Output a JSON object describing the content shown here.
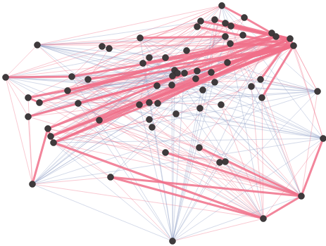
{
  "chart_data": {
    "type": "network",
    "tick_labels": false,
    "grid": false,
    "xlim": [
      0,
      463
    ],
    "ylim": [
      350,
      0
    ],
    "nodes": {
      "color": "#3f3a3c",
      "marker": "circle",
      "x": [
        315,
        347,
        305,
        285,
        280,
        320,
        328,
        345,
        386,
        392,
        412,
        417,
        320,
        327,
        53,
        145,
        155,
        199,
        265,
        212,
        235,
        203,
        323,
        8,
        102,
        125,
        248,
        252,
        245,
        262,
        280,
        300,
        278,
        305,
        223,
        244,
        288,
        370,
        357,
        451,
        96,
        40,
        56,
        111,
        372,
        198,
        212,
        224,
        314,
        284,
        40,
        250,
        212,
        141,
        216,
        68,
        72,
        76,
        459,
        235,
        283,
        312,
        320,
        46,
        157,
        428,
        374,
        245
      ],
      "y": [
        8,
        25,
        28,
        30,
        38,
        33,
        37,
        50,
        47,
        52,
        55,
        65,
        52,
        62,
        64,
        66,
        69,
        54,
        72,
        82,
        82,
        90,
        89,
        110,
        109,
        113,
        100,
        104,
        108,
        104,
        101,
        103,
        112,
        117,
        122,
        121,
        128,
        113,
        123,
        130,
        129,
        139,
        146,
        147,
        139,
        149,
        146,
        147,
        149,
        154,
        166,
        162,
        170,
        171,
        181,
        183,
        194,
        203,
        197,
        217,
        210,
        231,
        230,
        262,
        252,
        279,
        311,
        343
      ]
    },
    "edge_groups": [
      {
        "color": "#f0708a",
        "line_style": "thin",
        "edges": [
          [
            14,
            0
          ],
          [
            14,
            17
          ],
          [
            14,
            23
          ],
          [
            14,
            24
          ],
          [
            23,
            41
          ],
          [
            23,
            50
          ],
          [
            23,
            63
          ],
          [
            23,
            2
          ],
          [
            23,
            11
          ],
          [
            15,
            11
          ],
          [
            16,
            10
          ],
          [
            15,
            2
          ],
          [
            17,
            3
          ],
          [
            19,
            11
          ],
          [
            20,
            10
          ],
          [
            26,
            11
          ],
          [
            27,
            9
          ],
          [
            28,
            8
          ],
          [
            29,
            10
          ],
          [
            30,
            11
          ],
          [
            31,
            9
          ],
          [
            32,
            10
          ],
          [
            33,
            11
          ],
          [
            34,
            10
          ],
          [
            35,
            9
          ],
          [
            36,
            11
          ],
          [
            38,
            10
          ],
          [
            39,
            11
          ],
          [
            39,
            10
          ],
          [
            39,
            65
          ],
          [
            39,
            37
          ],
          [
            58,
            11
          ],
          [
            58,
            10
          ],
          [
            58,
            66
          ],
          [
            63,
            64
          ],
          [
            63,
            66
          ],
          [
            63,
            41
          ],
          [
            63,
            50
          ],
          [
            64,
            57
          ],
          [
            64,
            55
          ],
          [
            67,
            64
          ],
          [
            67,
            66
          ],
          [
            66,
            44
          ],
          [
            66,
            38
          ],
          [
            66,
            48
          ],
          [
            65,
            44
          ],
          [
            65,
            37
          ],
          [
            61,
            65
          ],
          [
            62,
            66
          ],
          [
            60,
            66
          ],
          [
            49,
            65
          ],
          [
            48,
            65
          ],
          [
            51,
            66
          ],
          [
            54,
            65
          ],
          [
            52,
            66
          ],
          [
            45,
            65
          ],
          [
            46,
            66
          ],
          [
            53,
            65
          ],
          [
            43,
            66
          ],
          [
            40,
            65
          ],
          [
            24,
            66
          ],
          [
            41,
            65
          ],
          [
            42,
            66
          ],
          [
            50,
            65
          ],
          [
            55,
            65
          ],
          [
            57,
            65
          ],
          [
            25,
            65
          ],
          [
            12,
            13
          ],
          [
            7,
            12
          ],
          [
            2,
            5
          ],
          [
            3,
            4
          ],
          [
            4,
            13
          ],
          [
            18,
            11
          ],
          [
            18,
            10
          ],
          [
            21,
            10
          ],
          [
            19,
            9
          ],
          [
            24,
            0
          ],
          [
            25,
            1
          ],
          [
            40,
            2
          ],
          [
            43,
            3
          ],
          [
            45,
            0
          ],
          [
            46,
            1
          ],
          [
            47,
            2
          ],
          [
            53,
            4
          ],
          [
            52,
            5
          ],
          [
            54,
            6
          ],
          [
            59,
            8
          ],
          [
            60,
            9
          ],
          [
            49,
            10
          ],
          [
            48,
            11
          ],
          [
            36,
            0
          ],
          [
            33,
            1
          ],
          [
            31,
            2
          ],
          [
            30,
            5
          ],
          [
            29,
            6
          ],
          [
            27,
            12
          ],
          [
            26,
            13
          ],
          [
            28,
            22
          ],
          [
            35,
            7
          ],
          [
            34,
            37
          ],
          [
            51,
            38
          ],
          [
            44,
            12
          ],
          [
            37,
            13
          ],
          [
            22,
            10
          ],
          [
            14,
            10
          ],
          [
            14,
            11
          ],
          [
            14,
            9
          ],
          [
            42,
            10
          ],
          [
            41,
            9
          ],
          [
            50,
            9
          ],
          [
            57,
            9
          ],
          [
            55,
            11
          ],
          [
            56,
            8
          ],
          [
            15,
            24
          ],
          [
            16,
            25
          ],
          [
            17,
            40
          ],
          [
            21,
            43
          ],
          [
            19,
            45
          ],
          [
            20,
            53
          ],
          [
            26,
            55
          ],
          [
            27,
            56
          ],
          [
            28,
            57
          ],
          [
            29,
            41
          ],
          [
            30,
            42
          ],
          [
            31,
            50
          ],
          [
            32,
            24
          ],
          [
            33,
            40
          ],
          [
            34,
            43
          ],
          [
            35,
            55
          ],
          [
            36,
            56
          ],
          [
            49,
            57
          ],
          [
            48,
            41
          ],
          [
            47,
            42
          ],
          [
            46,
            50
          ],
          [
            45,
            24
          ],
          [
            52,
            25
          ],
          [
            54,
            40
          ],
          [
            59,
            43
          ],
          [
            60,
            53
          ],
          [
            61,
            55
          ],
          [
            62,
            56
          ],
          [
            51,
            57
          ],
          [
            0,
            23
          ],
          [
            0,
            41
          ],
          [
            0,
            55
          ],
          [
            1,
            56
          ],
          [
            2,
            57
          ],
          [
            3,
            42
          ],
          [
            5,
            50
          ],
          [
            6,
            24
          ],
          [
            7,
            40
          ]
        ]
      },
      {
        "color": "#8f9fc4",
        "line_style": "thin",
        "edges": [
          [
            67,
            0
          ],
          [
            67,
            10
          ],
          [
            67,
            11
          ],
          [
            67,
            26
          ],
          [
            67,
            29
          ],
          [
            67,
            31
          ],
          [
            67,
            24
          ],
          [
            67,
            43
          ],
          [
            67,
            17
          ],
          [
            67,
            21
          ],
          [
            67,
            2
          ],
          [
            67,
            39
          ],
          [
            67,
            58
          ],
          [
            67,
            63
          ],
          [
            67,
            57
          ],
          [
            67,
            45
          ],
          [
            67,
            35
          ],
          [
            67,
            12
          ],
          [
            67,
            8
          ],
          [
            67,
            65
          ],
          [
            14,
            26
          ],
          [
            14,
            31
          ],
          [
            14,
            12
          ],
          [
            14,
            2
          ],
          [
            14,
            39
          ],
          [
            14,
            58
          ],
          [
            14,
            44
          ],
          [
            14,
            36
          ],
          [
            14,
            22
          ],
          [
            14,
            34
          ],
          [
            63,
            2
          ],
          [
            63,
            10
          ],
          [
            63,
            26
          ],
          [
            63,
            12
          ],
          [
            63,
            39
          ],
          [
            63,
            58
          ],
          [
            63,
            0
          ],
          [
            63,
            31
          ],
          [
            63,
            21
          ],
          [
            39,
            0
          ],
          [
            39,
            26
          ],
          [
            39,
            17
          ],
          [
            39,
            24
          ],
          [
            39,
            43
          ],
          [
            39,
            57
          ],
          [
            39,
            45
          ],
          [
            39,
            23
          ],
          [
            39,
            15
          ],
          [
            58,
            0
          ],
          [
            58,
            26
          ],
          [
            58,
            17
          ],
          [
            58,
            24
          ],
          [
            58,
            43
          ],
          [
            58,
            57
          ],
          [
            58,
            45
          ],
          [
            58,
            23
          ],
          [
            58,
            21
          ],
          [
            65,
            0
          ],
          [
            65,
            26
          ],
          [
            65,
            12
          ],
          [
            65,
            17
          ],
          [
            65,
            24
          ],
          [
            65,
            23
          ],
          [
            66,
            0
          ],
          [
            66,
            26
          ],
          [
            66,
            17
          ],
          [
            66,
            14
          ],
          [
            66,
            23
          ],
          [
            23,
            26
          ],
          [
            23,
            31
          ],
          [
            23,
            12
          ],
          [
            23,
            36
          ],
          [
            23,
            44
          ],
          [
            50,
            26
          ],
          [
            50,
            12
          ],
          [
            57,
            26
          ],
          [
            57,
            31
          ],
          [
            56,
            12
          ],
          [
            55,
            22
          ],
          [
            11,
            43
          ],
          [
            10,
            45
          ],
          [
            9,
            53
          ],
          [
            8,
            64
          ],
          [
            12,
            63
          ],
          [
            13,
            64
          ],
          [
            22,
            63
          ],
          [
            30,
            24
          ],
          [
            31,
            40
          ],
          [
            28,
            41
          ],
          [
            27,
            50
          ],
          [
            26,
            42
          ]
        ]
      },
      {
        "color": "#f0708a",
        "line_style": "bold",
        "edges": [
          [
            0,
            1
          ],
          [
            1,
            11
          ],
          [
            2,
            10
          ],
          [
            3,
            9
          ],
          [
            8,
            9
          ],
          [
            9,
            10
          ],
          [
            10,
            11
          ],
          [
            57,
            11
          ],
          [
            56,
            10
          ],
          [
            55,
            9
          ],
          [
            43,
            11
          ],
          [
            24,
            10
          ],
          [
            41,
            11
          ],
          [
            42,
            8
          ],
          [
            50,
            11
          ],
          [
            57,
            10
          ],
          [
            56,
            11
          ],
          [
            40,
            9
          ],
          [
            64,
            65
          ],
          [
            65,
            58
          ],
          [
            65,
            66
          ],
          [
            66,
            57
          ],
          [
            55,
            56
          ],
          [
            56,
            57
          ],
          [
            41,
            42
          ],
          [
            23,
            24
          ],
          [
            25,
            11
          ],
          [
            45,
            11
          ],
          [
            53,
            10
          ],
          [
            21,
            9
          ],
          [
            17,
            12
          ],
          [
            47,
            10
          ],
          [
            63,
            55
          ],
          [
            60,
            65
          ],
          [
            64,
            66
          ],
          [
            59,
            65
          ],
          [
            4,
            11
          ],
          [
            5,
            9
          ],
          [
            6,
            10
          ],
          [
            13,
            11
          ],
          [
            22,
            11
          ],
          [
            37,
            10
          ],
          [
            44,
            11
          ]
        ]
      }
    ]
  }
}
